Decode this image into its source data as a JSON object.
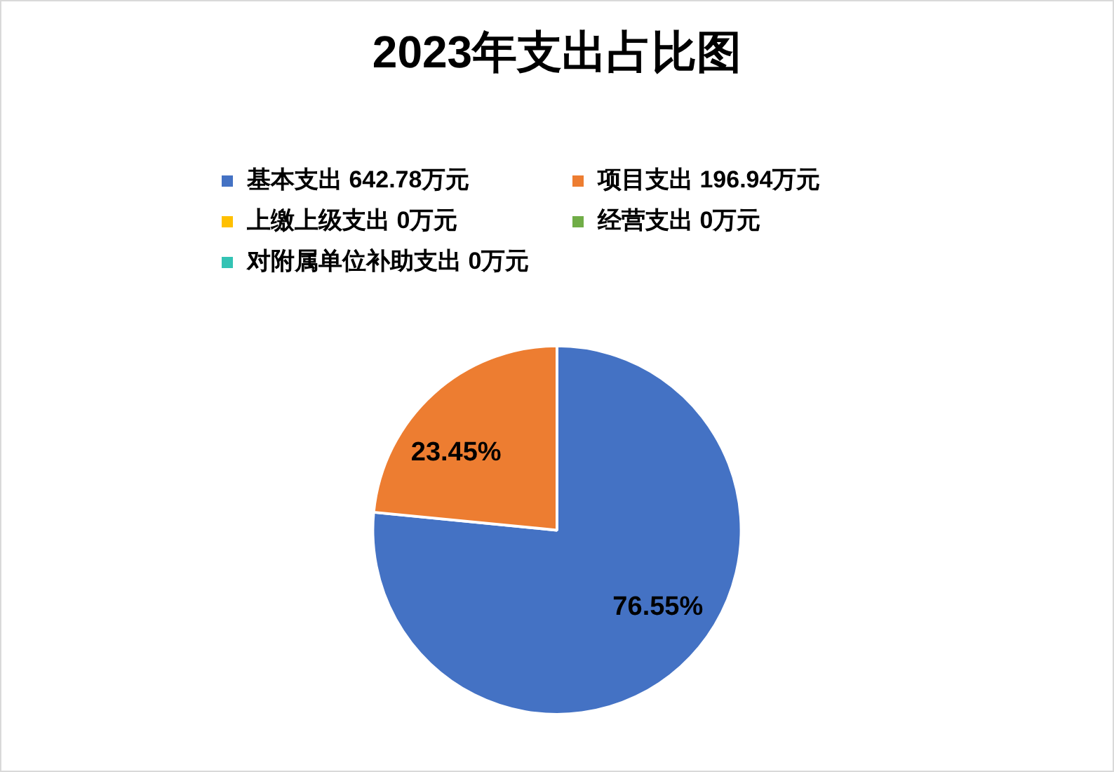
{
  "chart_data": {
    "type": "pie",
    "title": "2023年支出占比图",
    "categories": [
      "基本支出 642.78万元",
      "项目支出 196.94万元",
      "上缴上级支出 0万元",
      "经营支出 0万元",
      "对附属单位补助支出 0万元"
    ],
    "values": [
      76.55,
      23.45,
      0,
      0,
      0
    ],
    "colors": [
      "#4472c4",
      "#ed7d31",
      "#ffc000",
      "#70ad47",
      "#33c3b4"
    ],
    "value_labels": [
      "76.55%",
      "23.45%",
      null,
      null,
      null
    ],
    "legend": "top"
  }
}
